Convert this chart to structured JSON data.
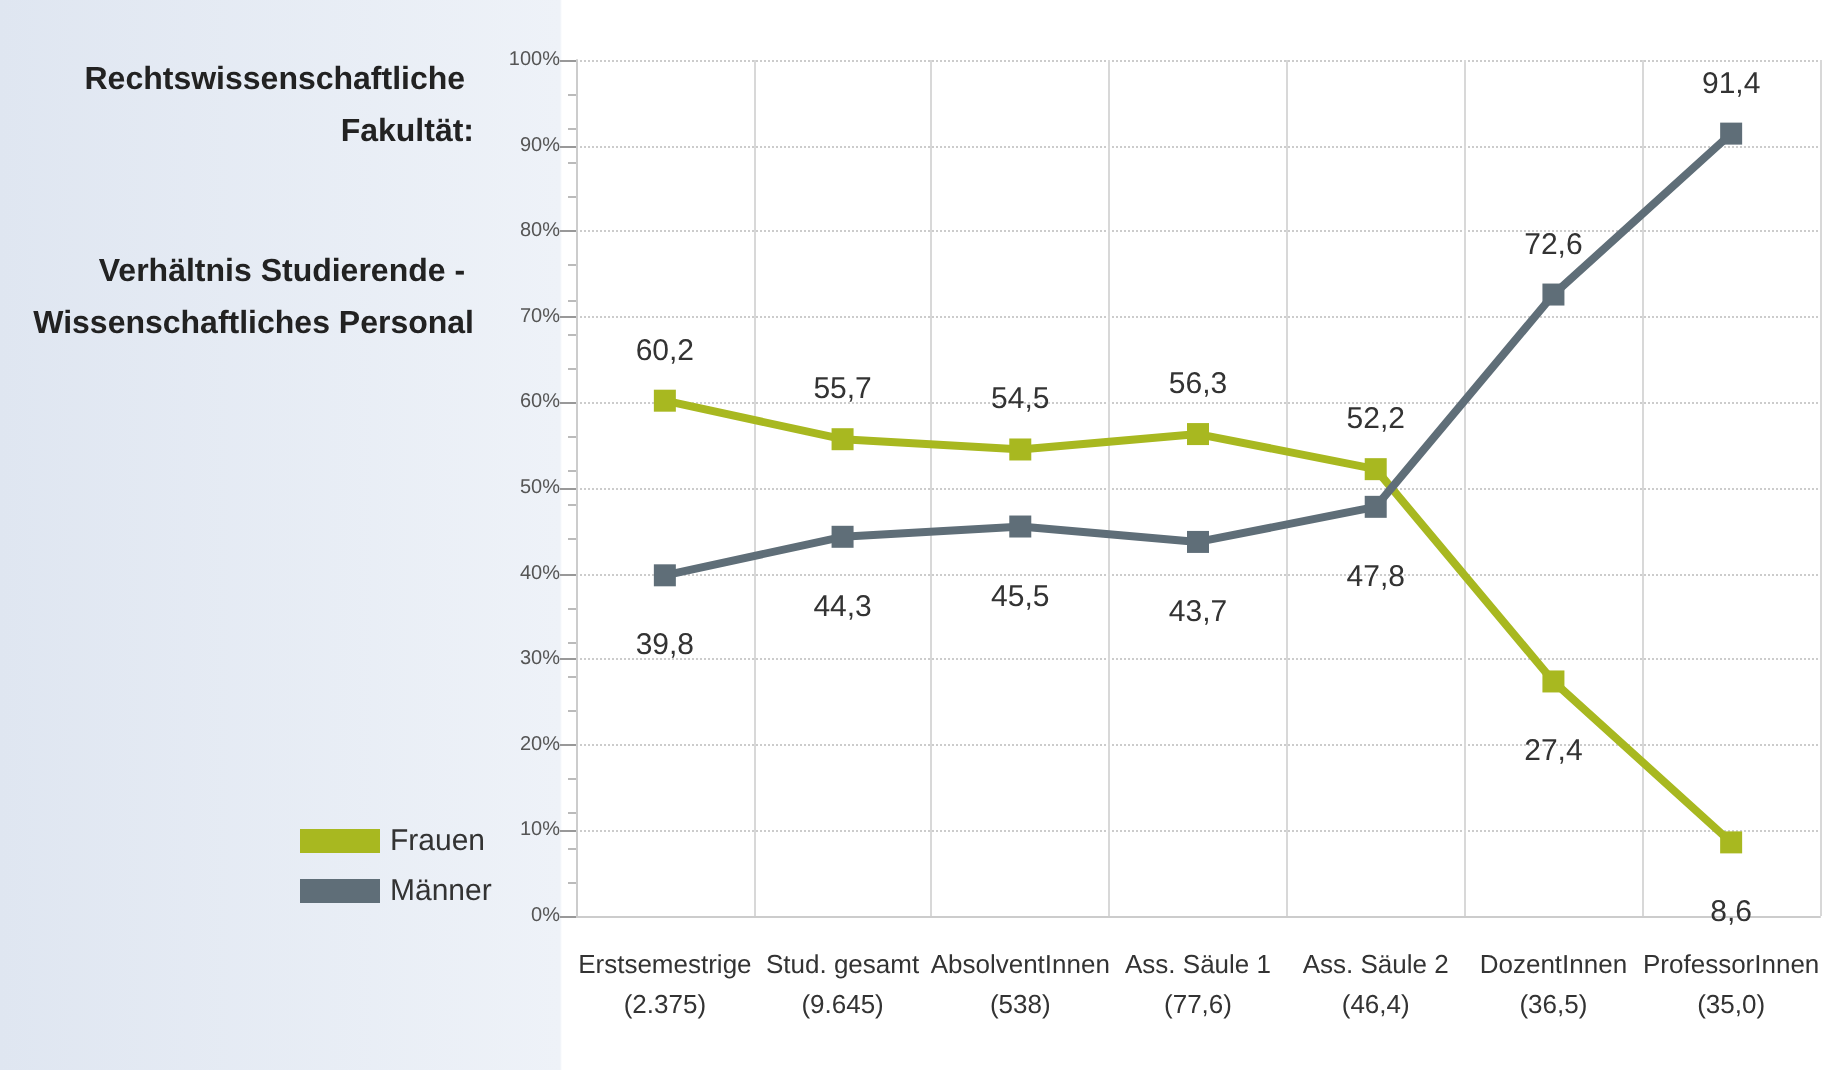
{
  "chart_data": {
    "type": "line",
    "title": "Rechtswissenschaftliche Fakultät:",
    "subtitle": "Verhältnis Studierende - Wissenschaftliches Personal",
    "categories": [
      "Erstsemestrige\n(2.375)",
      "Stud. gesamt\n(9.645)",
      "AbsolventInnen\n(538)",
      "Ass. Säule 1\n(77,6)",
      "Ass. Säule 2\n(46,4)",
      "DozentInnen\n(36,5)",
      "ProfessorInnen\n(35,0)"
    ],
    "series": [
      {
        "name": "Frauen",
        "color": "#a8b820",
        "values": [
          60.2,
          55.7,
          54.5,
          56.3,
          52.2,
          27.4,
          8.6
        ],
        "value_labels": [
          "60,2",
          "55,7",
          "54,5",
          "56,3",
          "52,2",
          "27,4",
          "8,6"
        ]
      },
      {
        "name": "Männer",
        "color": "#5f6e78",
        "values": [
          39.8,
          44.3,
          45.5,
          43.7,
          47.8,
          72.6,
          91.4
        ],
        "value_labels": [
          "39,8",
          "44,3",
          "45,5",
          "43,7",
          "47,8",
          "72,6",
          "91,4"
        ]
      }
    ],
    "ylim": [
      0,
      100
    ],
    "yticks": [
      {
        "value": 0,
        "label": "0%"
      },
      {
        "value": 10,
        "label": "10%"
      },
      {
        "value": 20,
        "label": "20%"
      },
      {
        "value": 30,
        "label": "30%"
      },
      {
        "value": 40,
        "label": "40%"
      },
      {
        "value": 50,
        "label": "50%"
      },
      {
        "value": 60,
        "label": "60%"
      },
      {
        "value": 70,
        "label": "70%"
      },
      {
        "value": 80,
        "label": "80%"
      },
      {
        "value": 90,
        "label": "90%"
      },
      {
        "value": 100,
        "label": "100%"
      }
    ],
    "grid": true,
    "legend": "bottom left",
    "marker": "square",
    "line_style": "solid"
  }
}
